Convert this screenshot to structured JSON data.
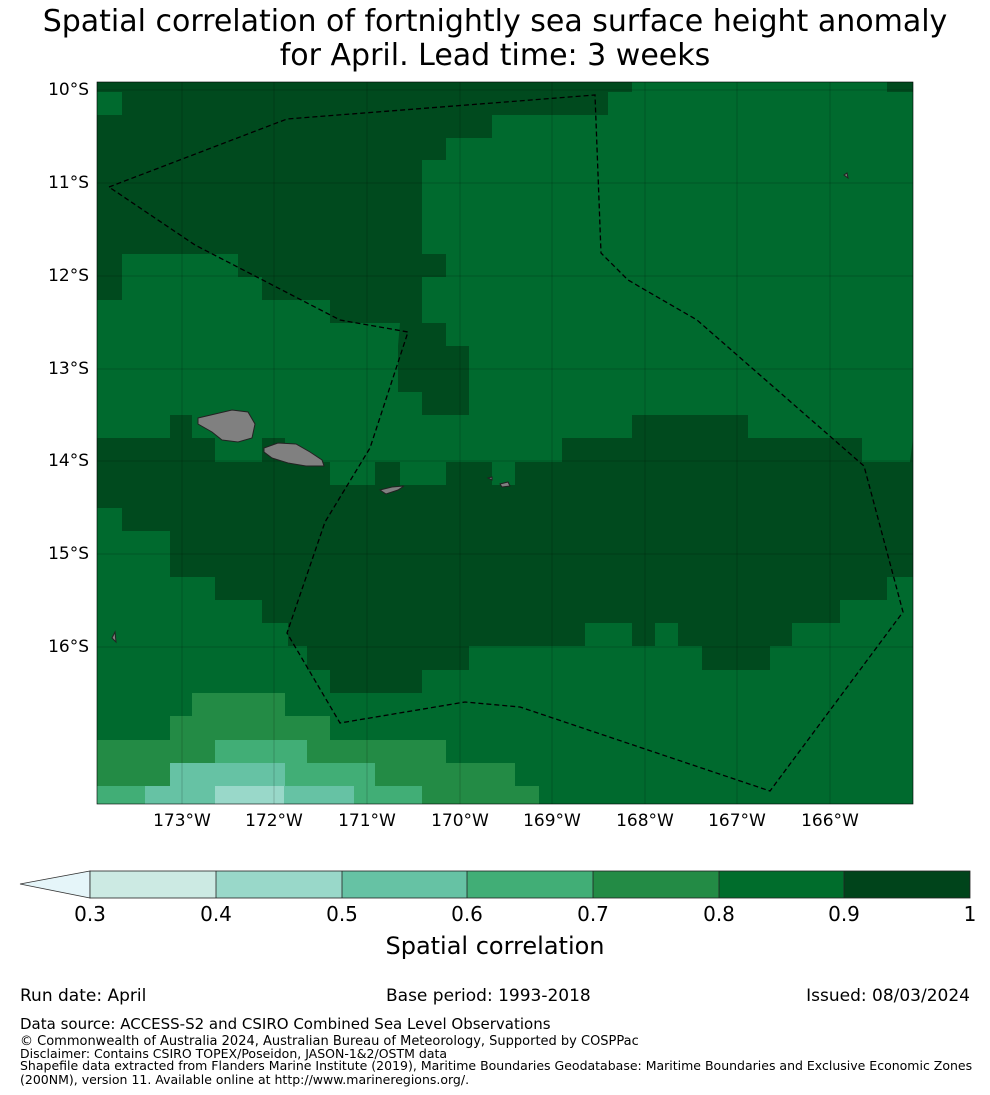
{
  "title_line1": "Spatial correlation of fortnightly sea surface height anomaly",
  "title_line2": "for April. Lead time: 3 weeks",
  "map": {
    "lat_labels": [
      "10°S",
      "11°S",
      "12°S",
      "13°S",
      "14°S",
      "15°S",
      "16°S"
    ],
    "lon_labels": [
      "173°W",
      "172°W",
      "171°W",
      "170°W",
      "169°W",
      "168°W",
      "167°W",
      "166°W"
    ],
    "ocean_color": "#006a2e",
    "land_color": "#808080",
    "boundary_style": "black-dashed"
  },
  "colorbar": {
    "tick_labels": [
      "0.3",
      "0.4",
      "0.5",
      "0.6",
      "0.7",
      "0.8",
      "0.9",
      "1"
    ],
    "label": "Spatial correlation",
    "colors": [
      "#cceae3",
      "#99d8c9",
      "#66c2a4",
      "#41ae76",
      "#238b45",
      "#006d2c",
      "#00441b"
    ],
    "extend_color": "#e5f5f9"
  },
  "footer": {
    "run_date": "Run date: April",
    "base_period": "Base period: 1993-2018",
    "issued": "Issued: 08/03/2024",
    "data_source": "Data source: ACCESS-S2 and CSIRO Combined Sea Level Observations",
    "copyright": "© Commonwealth of Australia 2024, Australian Bureau of Meteorology, Supported by COSPPac",
    "disclaimer": "Disclaimer: Contains CSIRO TOPEX/Poseidon, JASON-1&2/OSTM data",
    "shapefile_1": "Shapefile data extracted from Flanders Marine Institute (2019), Maritime Boundaries Geodatabase: Maritime Boundaries and Exclusive Economic Zones",
    "shapefile_2": "(200NM), version 11. Available online at http://www.marineregions.org/."
  }
}
